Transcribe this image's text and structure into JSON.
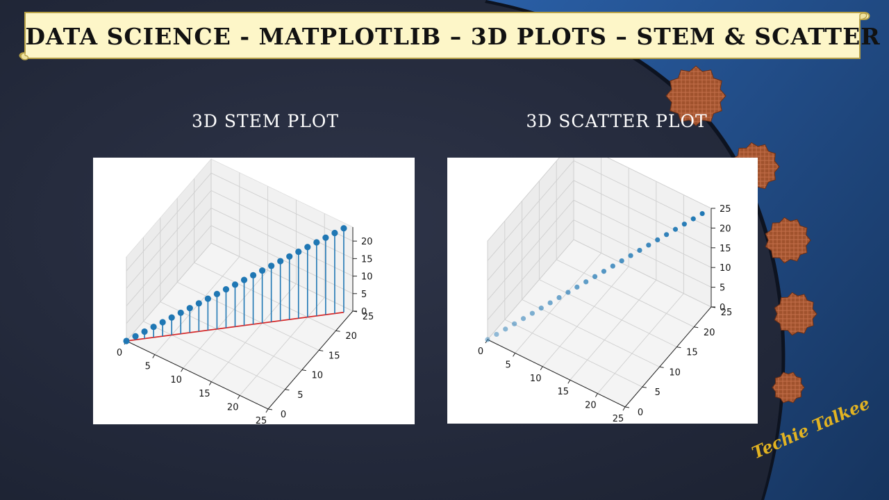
{
  "slide": {
    "title": "DATA SCIENCE - MATPLOTLIB – 3D PLOTS – STEM & SCATTER",
    "brand": "Techie Talkee",
    "colors": {
      "background": "#232a3e",
      "banner_fill": "#fdf6c8",
      "banner_border": "#b8a248",
      "accent_blue": "#1f5b9e",
      "deco_fill": "#a0522d",
      "marker": "#1f77b4",
      "stem_baseline": "#d62728",
      "brand_text": "#e2b322"
    }
  },
  "chart_data": [
    {
      "type": "3d-stem",
      "title": "3D STEM PLOT",
      "x": [
        0,
        1,
        2,
        3,
        4,
        5,
        6,
        7,
        8,
        9,
        10,
        11,
        12,
        13,
        14,
        15,
        16,
        17,
        18,
        19,
        20,
        21,
        22,
        23,
        24
      ],
      "y": [
        0,
        1,
        2,
        3,
        4,
        5,
        6,
        7,
        8,
        9,
        10,
        11,
        12,
        13,
        14,
        15,
        16,
        17,
        18,
        19,
        20,
        21,
        22,
        23,
        24
      ],
      "z": [
        0,
        1,
        2,
        3,
        4,
        5,
        6,
        7,
        8,
        9,
        10,
        11,
        12,
        13,
        14,
        15,
        16,
        17,
        18,
        19,
        20,
        21,
        22,
        23,
        24
      ],
      "xlim": [
        0,
        25
      ],
      "ylim": [
        0,
        25
      ],
      "zlim": [
        0,
        24
      ],
      "xticks": [
        "0",
        "5",
        "10",
        "15",
        "20",
        "25"
      ],
      "yticks": [
        "0",
        "5",
        "10",
        "15",
        "20",
        "25"
      ],
      "zticks": [
        "0",
        "5",
        "10",
        "15",
        "20"
      ],
      "grid": true
    },
    {
      "type": "3d-scatter",
      "title": "3D SCATTER PLOT",
      "x": [
        0,
        1,
        2,
        3,
        4,
        5,
        6,
        7,
        8,
        9,
        10,
        11,
        12,
        13,
        14,
        15,
        16,
        17,
        18,
        19,
        20,
        21,
        22,
        23,
        24
      ],
      "y": [
        0,
        1,
        2,
        3,
        4,
        5,
        6,
        7,
        8,
        9,
        10,
        11,
        12,
        13,
        14,
        15,
        16,
        17,
        18,
        19,
        20,
        21,
        22,
        23,
        24
      ],
      "z": [
        0,
        1,
        2,
        3,
        4,
        5,
        6,
        7,
        8,
        9,
        10,
        11,
        12,
        13,
        14,
        15,
        16,
        17,
        18,
        19,
        20,
        21,
        22,
        23,
        24
      ],
      "xlim": [
        0,
        25
      ],
      "ylim": [
        0,
        25
      ],
      "zlim": [
        0,
        25
      ],
      "xticks": [
        "0",
        "5",
        "10",
        "15",
        "20",
        "25"
      ],
      "yticks": [
        "0",
        "5",
        "10",
        "15",
        "20",
        "25"
      ],
      "zticks": [
        "0",
        "5",
        "10",
        "15",
        "20",
        "25"
      ],
      "grid": true
    }
  ]
}
